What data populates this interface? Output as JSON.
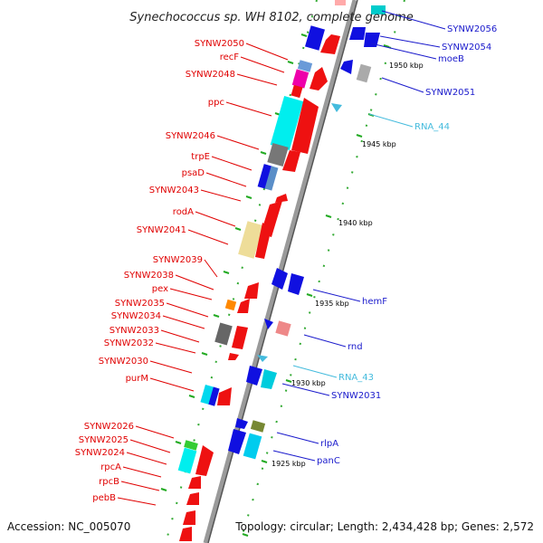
{
  "title": "Synechococcus sp. WH 8102, complete genome",
  "accession": "Accession: NC_005070",
  "topology": "Topology: circular; Length: 2,434,428 bp; Genes: 2,572",
  "colors": {
    "red_label": "#e00000",
    "blue_label": "#1a1acc",
    "cyan_label": "#44bbdd",
    "backbone": "#888888",
    "tick": "#22aa22"
  },
  "axis_labels": [
    "1950 kbp",
    "1945 kbp",
    "1940 kbp",
    "1935 kbp",
    "1930 kbp",
    "1925 kbp"
  ],
  "left_labels": [
    "SYNW2050",
    "recF",
    "SYNW2048",
    "ppc",
    "SYNW2046",
    "trpE",
    "psaD",
    "SYNW2043",
    "rodA",
    "SYNW2041",
    "SYNW2039",
    "SYNW2038",
    "pex",
    "SYNW2035",
    "SYNW2034",
    "SYNW2033",
    "SYNW2032",
    "SYNW2030",
    "purM",
    "SYNW2026",
    "SYNW2025",
    "SYNW2024",
    "rpcA",
    "rpcB",
    "pebB"
  ],
  "right_labels": [
    "SYNW2056",
    "SYNW2054",
    "moeB",
    "SYNW2051",
    "RNA_44",
    "hemF",
    "rnd",
    "RNA_43",
    "SYNW2031",
    "rlpA",
    "panC"
  ]
}
